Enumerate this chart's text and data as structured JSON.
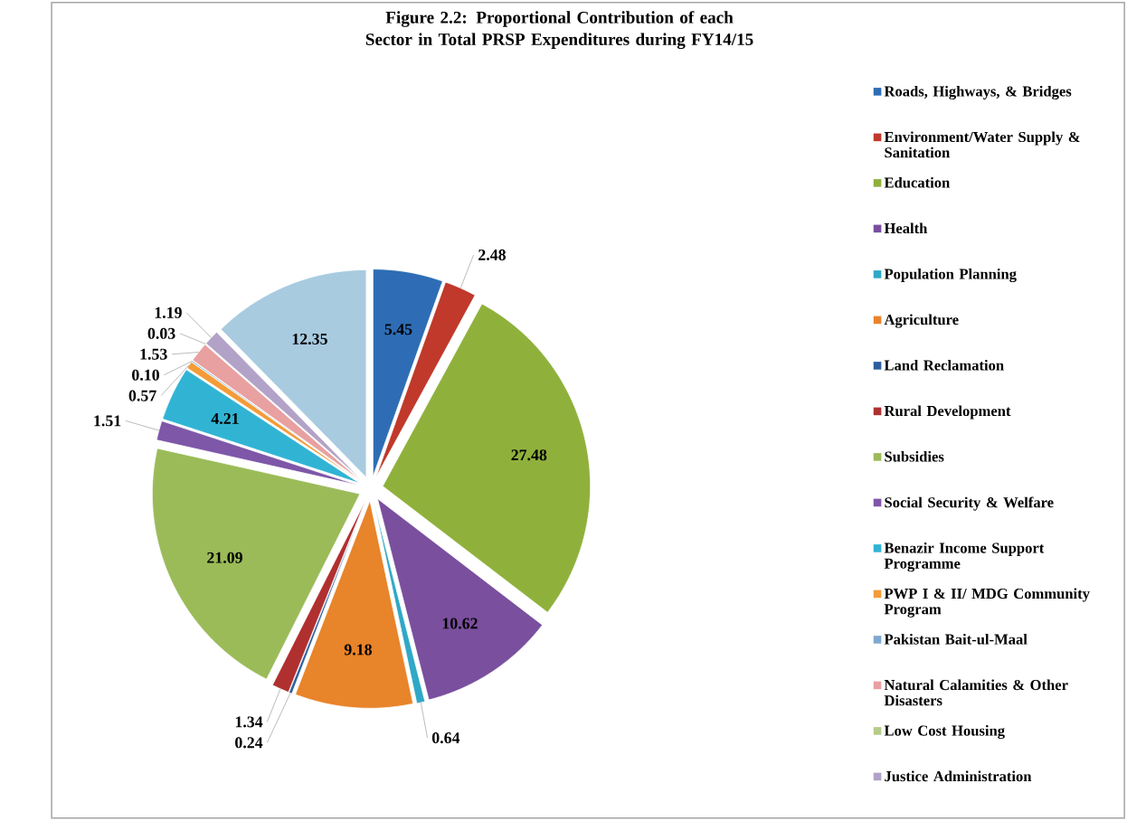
{
  "chart_data": {
    "type": "pie",
    "title": "Figure 2.2: Proportional Contribution of each Sector in Total PRSP Expenditures during FY14/15",
    "categories": [
      "Roads, Highways, & Bridges",
      "Environment/Water Supply & Sanitation",
      "Education",
      "Health",
      "Population Planning",
      "Agriculture",
      "Land Reclamation",
      "Rural Development",
      "Subsidies",
      "Social Security & Welfare",
      "Benazir Income Support Programme",
      "PWP I & II/ MDG Community Program",
      "Pakistan Bait-ul-Maal",
      "Natural Calamities & Other Disasters",
      "Low Cost Housing",
      "Justice Administration",
      null
    ],
    "values": [
      5.45,
      2.48,
      27.48,
      10.62,
      0.64,
      9.18,
      0.24,
      1.34,
      21.09,
      1.51,
      4.21,
      0.57,
      0.1,
      1.53,
      0.03,
      1.19,
      12.35
    ],
    "value_labels": [
      "5.45",
      "2.48",
      "27.48",
      "10.62",
      "0.64",
      "9.18",
      "0.24",
      "1.34",
      "21.09",
      "1.51",
      "4.21",
      "0.57",
      "0.10",
      "1.53",
      "0.03",
      "1.19",
      "12.35"
    ],
    "colors": [
      "#2e6db5",
      "#c0392b",
      "#8fb13c",
      "#7a4f9e",
      "#2fa8c6",
      "#e8842a",
      "#2c5f9e",
      "#b03030",
      "#9bbb59",
      "#7e57a8",
      "#31b4d4",
      "#f39c38",
      "#7fa8d0",
      "#e8a0a0",
      "#b5cc88",
      "#b3a2c7",
      "#a8cbe0"
    ],
    "legend": "right"
  }
}
